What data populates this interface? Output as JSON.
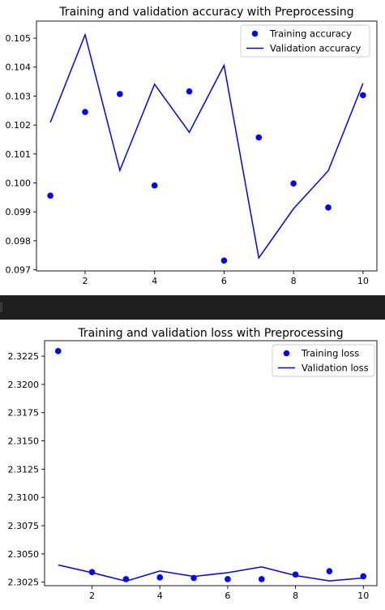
{
  "chart_data": [
    {
      "type": "line",
      "title": "Training and validation accuracy with Preprocessing",
      "xlabel": "",
      "ylabel": "",
      "x": [
        1,
        2,
        3,
        4,
        5,
        6,
        7,
        8,
        9,
        10
      ],
      "xlim": [
        0.6,
        10.4
      ],
      "ylim": [
        0.09696,
        0.10559
      ],
      "x_ticks": [
        2,
        4,
        6,
        8,
        10
      ],
      "y_ticks": [
        0.097,
        0.098,
        0.099,
        0.1,
        0.101,
        0.102,
        0.103,
        0.104,
        0.105
      ],
      "y_tick_labels": [
        "0.097",
        "0.098",
        "0.099",
        "0.100",
        "0.101",
        "0.102",
        "0.103",
        "0.104",
        "0.105"
      ],
      "grid": false,
      "legend_position": "top-right",
      "series": [
        {
          "name": "Training accuracy",
          "style": "points",
          "color": "#0000ff",
          "values": [
            0.09956,
            0.10245,
            0.10307,
            0.09991,
            0.10316,
            0.09732,
            0.10157,
            0.09998,
            0.09915,
            0.10303
          ]
        },
        {
          "name": "Validation accuracy",
          "style": "line",
          "color": "#0000ff",
          "values": [
            0.10209,
            0.10512,
            0.10043,
            0.10341,
            0.10175,
            0.10406,
            0.09741,
            0.09911,
            0.10042,
            0.10344
          ]
        }
      ]
    },
    {
      "type": "line",
      "title": "Training and validation loss with Preprocessing",
      "xlabel": "",
      "ylabel": "",
      "x": [
        1,
        2,
        3,
        4,
        5,
        6,
        7,
        8,
        9,
        10
      ],
      "xlim": [
        0.6,
        10.4
      ],
      "ylim": [
        2.30219,
        2.32387
      ],
      "x_ticks": [
        2,
        4,
        6,
        8,
        10
      ],
      "y_ticks": [
        2.3025,
        2.305,
        2.3075,
        2.31,
        2.3125,
        2.315,
        2.3175,
        2.32,
        2.3225
      ],
      "y_tick_labels": [
        "2.3025",
        "2.3050",
        "2.3075",
        "2.3100",
        "2.3125",
        "2.3150",
        "2.3175",
        "2.3200",
        "2.3225"
      ],
      "grid": false,
      "legend_position": "top-right",
      "series": [
        {
          "name": "Training loss",
          "style": "points",
          "color": "#0000ff",
          "values": [
            2.32295,
            2.30339,
            2.30277,
            2.30292,
            2.30287,
            2.30277,
            2.30277,
            2.30317,
            2.30347,
            2.30302
          ]
        },
        {
          "name": "Validation loss",
          "style": "line",
          "color": "#0000ff",
          "values": [
            2.30402,
            2.30334,
            2.30259,
            2.30349,
            2.30301,
            2.30334,
            2.30385,
            2.30309,
            2.30261,
            2.30287
          ]
        }
      ]
    }
  ]
}
